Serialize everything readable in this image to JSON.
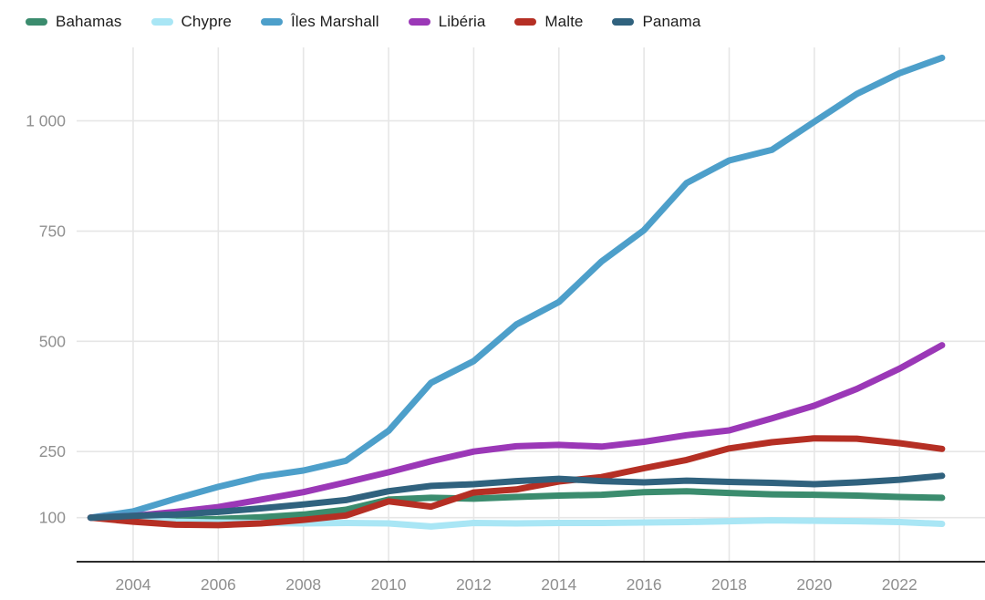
{
  "chart_data": {
    "type": "line",
    "title": "",
    "xlabel": "",
    "ylabel": "",
    "x": [
      2003,
      2004,
      2005,
      2006,
      2007,
      2008,
      2009,
      2010,
      2011,
      2012,
      2013,
      2014,
      2015,
      2016,
      2017,
      2018,
      2019,
      2020,
      2021,
      2022,
      2023
    ],
    "x_ticks": [
      2004,
      2006,
      2008,
      2010,
      2012,
      2014,
      2016,
      2018,
      2020,
      2022
    ],
    "y_ticks": [
      100,
      250,
      500,
      750,
      1000
    ],
    "y_tick_labels": [
      "100",
      "250",
      "500",
      "750",
      "1 000"
    ],
    "y_range_drawn": [
      0,
      1160
    ],
    "grid": true,
    "legend_position": "top",
    "series": [
      {
        "name": "Bahamas",
        "color": "#3b8c6e",
        "values": [
          100,
          97,
          95,
          97,
          101,
          107,
          118,
          141,
          145,
          143,
          147,
          150,
          152,
          158,
          160,
          156,
          153,
          152,
          150,
          147,
          145
        ]
      },
      {
        "name": "Chypre",
        "color": "#a9e6f5",
        "values": [
          100,
          95,
          91,
          89,
          88,
          87,
          88,
          87,
          80,
          88,
          87,
          88,
          88,
          89,
          90,
          92,
          94,
          93,
          92,
          90,
          86
        ]
      },
      {
        "name": "Îles Marshall",
        "color": "#4d9fca",
        "values": [
          100,
          114,
          143,
          170,
          193,
          207,
          229,
          297,
          406,
          455,
          538,
          589,
          681,
          752,
          859,
          910,
          934,
          998,
          1061,
          1108,
          1143
        ]
      },
      {
        "name": "Libéria",
        "color": "#9b38b7",
        "values": [
          100,
          104,
          113,
          124,
          141,
          158,
          180,
          203,
          228,
          250,
          262,
          265,
          261,
          272,
          287,
          298,
          325,
          354,
          392,
          438,
          491
        ]
      },
      {
        "name": "Malte",
        "color": "#b52f24",
        "values": [
          100,
          91,
          84,
          83,
          87,
          95,
          105,
          137,
          125,
          157,
          164,
          182,
          192,
          212,
          231,
          257,
          271,
          280,
          279,
          269,
          256
        ]
      },
      {
        "name": "Panama",
        "color": "#30627e",
        "values": [
          100,
          104,
          107,
          113,
          121,
          130,
          140,
          160,
          172,
          176,
          183,
          188,
          183,
          180,
          184,
          181,
          179,
          176,
          180,
          186,
          195
        ]
      }
    ]
  },
  "colors": {
    "background": "#ffffff",
    "axis_line": "#2b2b2b",
    "gridline": "#e6e6e6",
    "tick_label": "#8f8f8f",
    "legend_text": "#1d1d1d"
  }
}
